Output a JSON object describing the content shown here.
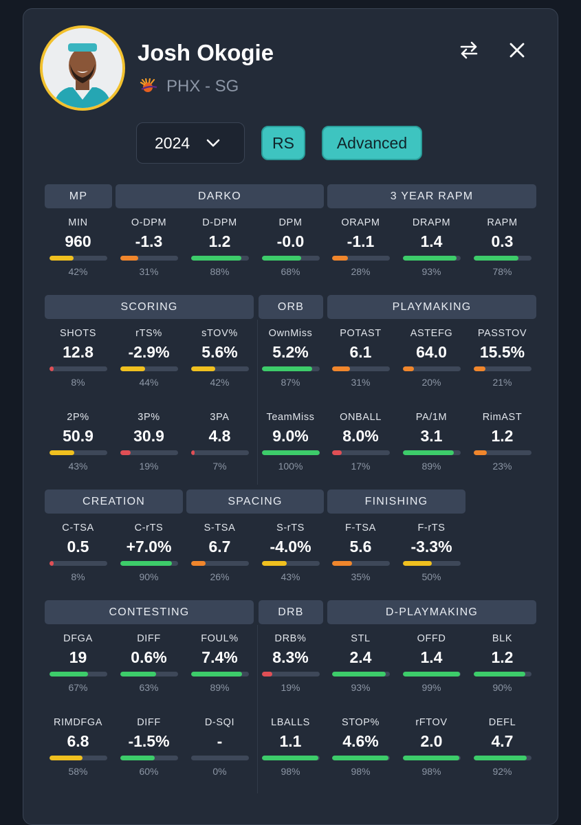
{
  "player": {
    "name": "Josh Okogie",
    "team_position": "PHX - SG",
    "team_color": "#e56020",
    "ring_color": "#f2c12e"
  },
  "icons": {
    "swap": "swap-arrows-icon",
    "close": "close-icon",
    "dropdown": "chevron-down-icon",
    "team_logo": "suns-logo-icon"
  },
  "controls": {
    "season": "2024",
    "season_type": "RS",
    "mode": "Advanced"
  },
  "colors": {
    "red": "#e04f55",
    "orange": "#f0862c",
    "yellow": "#f0c01f",
    "green": "#3dcc6a"
  },
  "sections": {
    "mp": "MP",
    "darko": "DARKO",
    "rapm": "3 YEAR RAPM",
    "scoring": "SCORING",
    "orb": "ORB",
    "playmaking": "PLAYMAKING",
    "creation": "CREATION",
    "spacing": "SPACING",
    "finishing": "FINISHING",
    "contesting": "CONTESTING",
    "drb": "DRB",
    "dplaymaking": "D-PLAYMAKING"
  },
  "metrics": {
    "min": {
      "label": "MIN",
      "value": "960",
      "pct": "42%",
      "fill": 42
    },
    "odpm": {
      "label": "O-DPM",
      "value": "-1.3",
      "pct": "31%",
      "fill": 31
    },
    "ddpm": {
      "label": "D-DPM",
      "value": "1.2",
      "pct": "88%",
      "fill": 88
    },
    "dpm": {
      "label": "DPM",
      "value": "-0.0",
      "pct": "68%",
      "fill": 68
    },
    "orapm": {
      "label": "ORAPM",
      "value": "-1.1",
      "pct": "28%",
      "fill": 28
    },
    "drapm": {
      "label": "DRAPM",
      "value": "1.4",
      "pct": "93%",
      "fill": 93
    },
    "rapm": {
      "label": "RAPM",
      "value": "0.3",
      "pct": "78%",
      "fill": 78
    },
    "shots": {
      "label": "SHOTS",
      "value": "12.8",
      "pct": "8%",
      "fill": 8
    },
    "rts": {
      "label": "rTS%",
      "value": "-2.9%",
      "pct": "44%",
      "fill": 44
    },
    "stov": {
      "label": "sTOV%",
      "value": "5.6%",
      "pct": "42%",
      "fill": 42
    },
    "ownmiss": {
      "label": "OwnMiss",
      "value": "5.2%",
      "pct": "87%",
      "fill": 87
    },
    "potast": {
      "label": "POTAST",
      "value": "6.1",
      "pct": "31%",
      "fill": 31
    },
    "astefg": {
      "label": "ASTEFG",
      "value": "64.0",
      "pct": "20%",
      "fill": 20
    },
    "passtov": {
      "label": "PASSTOV",
      "value": "15.5%",
      "pct": "21%",
      "fill": 21
    },
    "two_p": {
      "label": "2P%",
      "value": "50.9",
      "pct": "43%",
      "fill": 43
    },
    "three_p": {
      "label": "3P%",
      "value": "30.9",
      "pct": "19%",
      "fill": 19
    },
    "three_pa": {
      "label": "3PA",
      "value": "4.8",
      "pct": "7%",
      "fill": 7
    },
    "teammiss": {
      "label": "TeamMiss",
      "value": "9.0%",
      "pct": "100%",
      "fill": 100
    },
    "onball": {
      "label": "ONBALL",
      "value": "8.0%",
      "pct": "17%",
      "fill": 17
    },
    "pa1m": {
      "label": "PA/1M",
      "value": "3.1",
      "pct": "89%",
      "fill": 89
    },
    "rimast": {
      "label": "RimAST",
      "value": "1.2",
      "pct": "23%",
      "fill": 23
    },
    "ctsa": {
      "label": "C-TSA",
      "value": "0.5",
      "pct": "8%",
      "fill": 8
    },
    "crts": {
      "label": "C-rTS",
      "value": "+7.0%",
      "pct": "90%",
      "fill": 90
    },
    "stsa": {
      "label": "S-TSA",
      "value": "6.7",
      "pct": "26%",
      "fill": 26
    },
    "srts": {
      "label": "S-rTS",
      "value": "-4.0%",
      "pct": "43%",
      "fill": 43
    },
    "ftsa": {
      "label": "F-TSA",
      "value": "5.6",
      "pct": "35%",
      "fill": 35
    },
    "frts": {
      "label": "F-rTS",
      "value": "-3.3%",
      "pct": "50%",
      "fill": 50
    },
    "dfga": {
      "label": "DFGA",
      "value": "19",
      "pct": "67%",
      "fill": 67
    },
    "diff": {
      "label": "DIFF",
      "value": "0.6%",
      "pct": "63%",
      "fill": 63
    },
    "foul": {
      "label": "FOUL%",
      "value": "7.4%",
      "pct": "89%",
      "fill": 89
    },
    "drb": {
      "label": "DRB%",
      "value": "8.3%",
      "pct": "19%",
      "fill": 19
    },
    "stl": {
      "label": "STL",
      "value": "2.4",
      "pct": "93%",
      "fill": 93
    },
    "offd": {
      "label": "OFFD",
      "value": "1.4",
      "pct": "99%",
      "fill": 99
    },
    "blk": {
      "label": "BLK",
      "value": "1.2",
      "pct": "90%",
      "fill": 90
    },
    "rimdfga": {
      "label": "RIMDFGA",
      "value": "6.8",
      "pct": "58%",
      "fill": 58
    },
    "diff2": {
      "label": "DIFF",
      "value": "-1.5%",
      "pct": "60%",
      "fill": 60
    },
    "dsqi": {
      "label": "D-SQI",
      "value": "-",
      "pct": "0%",
      "fill": 0
    },
    "lballs": {
      "label": "LBALLS",
      "value": "1.1",
      "pct": "98%",
      "fill": 98
    },
    "stop": {
      "label": "STOP%",
      "value": "4.6%",
      "pct": "98%",
      "fill": 98
    },
    "rftov": {
      "label": "rFTOV",
      "value": "2.0",
      "pct": "98%",
      "fill": 98
    },
    "defl": {
      "label": "DEFL",
      "value": "4.7",
      "pct": "92%",
      "fill": 92
    }
  }
}
